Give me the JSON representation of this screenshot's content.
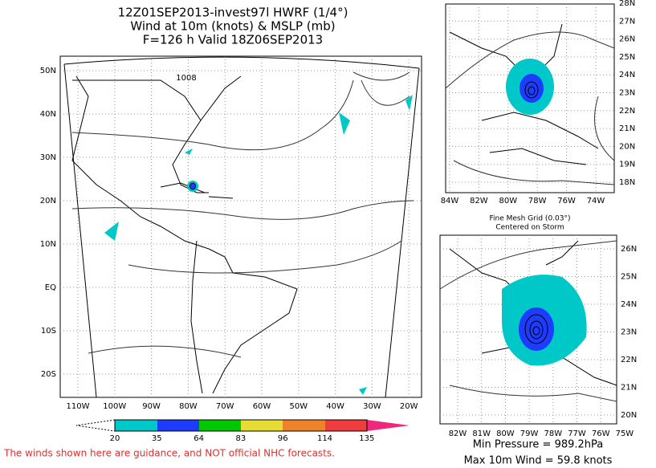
{
  "header": {
    "title_lines": [
      "12Z01SEP2013-invest97l HWRF (1/4°)",
      "Wind at 10m (knots) & MSLP (mb)",
      "F=126 h Valid 18Z06SEP2013"
    ]
  },
  "main_map": {
    "lat_labels": [
      "50N",
      "40N",
      "30N",
      "20N",
      "10N",
      "EQ",
      "10S",
      "20S"
    ],
    "lon_labels": [
      "110W",
      "100W",
      "90W",
      "80W",
      "70W",
      "60W",
      "50W",
      "40W",
      "30W",
      "20W"
    ],
    "contour_label": "1008"
  },
  "colorbar": {
    "labels": [
      "20",
      "35",
      "64",
      "83",
      "96",
      "114",
      "135"
    ]
  },
  "disclaimer": "The winds shown here are guidance, and NOT official NHC forecasts.",
  "inset_top": {
    "lat_labels": [
      "28N",
      "27N",
      "26N",
      "25N",
      "24N",
      "23N",
      "22N",
      "21N",
      "20N",
      "19N",
      "18N"
    ],
    "lon_labels": [
      "84W",
      "82W",
      "80W",
      "78W",
      "76W",
      "74W"
    ]
  },
  "inset_bottom": {
    "title_lines": [
      "Fine Mesh Grid (0.03°)",
      "Centered on Storm"
    ],
    "lat_labels": [
      "26N",
      "25N",
      "24N",
      "23N",
      "22N",
      "21N",
      "20N"
    ],
    "lon_labels": [
      "82W",
      "81W",
      "80W",
      "79W",
      "78W",
      "77W",
      "76W",
      "75W"
    ]
  },
  "storm_info": {
    "min_pressure": "Min Pressure = 989.2hPa",
    "max_wind": "Max 10m Wind = 59.8 knots"
  }
}
